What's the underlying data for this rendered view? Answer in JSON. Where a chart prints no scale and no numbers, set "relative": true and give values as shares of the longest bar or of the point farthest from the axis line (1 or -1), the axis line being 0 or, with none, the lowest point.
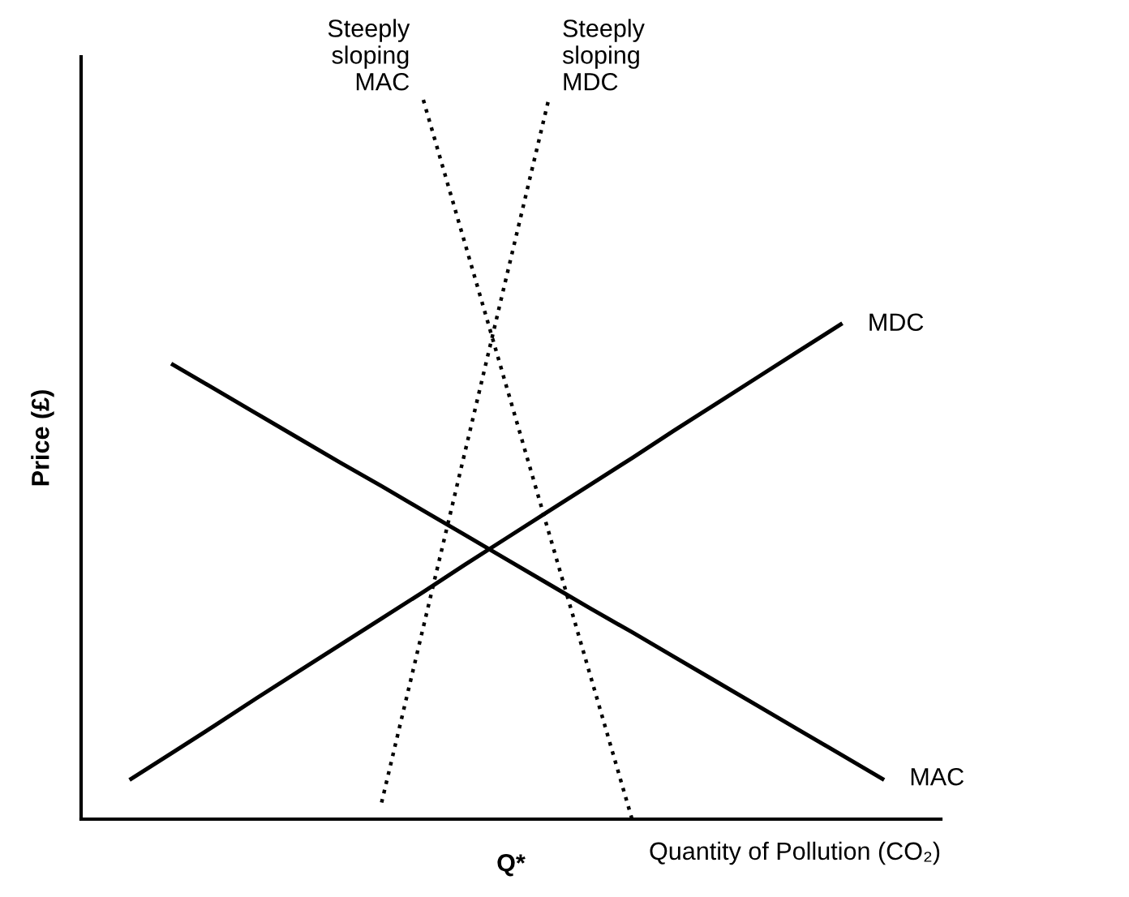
{
  "chart_data": {
    "type": "line",
    "relative": true,
    "xlabel": "Quantity of Pollution (CO₂)",
    "ylabel": "Price (£)",
    "annotations": [
      "Q*"
    ],
    "categories": [
      null,
      null,
      null,
      null,
      null,
      null,
      null,
      null,
      null,
      null,
      null,
      null,
      null,
      null,
      null,
      null,
      null,
      null,
      null,
      null,
      null
    ],
    "series": [
      {
        "name": "MAC",
        "color": "#000000",
        "line_style": "solid",
        "values": [
          null,
          null,
          0.632,
          0.598,
          0.564,
          0.53,
          0.496,
          0.463,
          0.429,
          0.395,
          0.361,
          0.327,
          0.293,
          0.26,
          0.226,
          0.192,
          0.158,
          0.124,
          0.09,
          0.056,
          null
        ]
      },
      {
        "name": "MDC",
        "color": "#000000",
        "line_style": "solid",
        "values": [
          null,
          0.056,
          0.093,
          0.13,
          0.168,
          0.205,
          0.242,
          0.279,
          0.316,
          0.354,
          0.391,
          0.428,
          0.465,
          0.502,
          0.54,
          0.577,
          0.614,
          0.651,
          0.688,
          null,
          null
        ]
      },
      {
        "name": "Steeply sloping MAC",
        "color": "#000000",
        "line_style": "dotted",
        "values": [
          null,
          null,
          null,
          null,
          null,
          null,
          null,
          null,
          1.0,
          0.8,
          0.6,
          0.4,
          0.2,
          0.0,
          null,
          null,
          null,
          null,
          null,
          null,
          null
        ]
      },
      {
        "name": "Steeply sloping MDC",
        "color": "#000000",
        "line_style": "dotted",
        "values": [
          null,
          null,
          null,
          null,
          null,
          null,
          null,
          0.023,
          0.267,
          0.511,
          0.756,
          1.0,
          null,
          null,
          null,
          null,
          null,
          null,
          null,
          null,
          null
        ]
      }
    ]
  }
}
